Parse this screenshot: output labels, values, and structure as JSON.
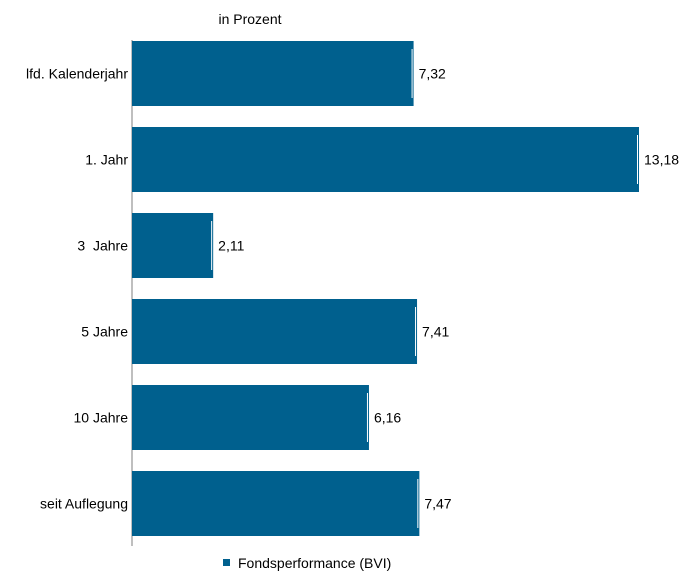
{
  "chart_data": {
    "type": "bar",
    "orientation": "horizontal",
    "unit_label": "in Prozent",
    "categories": [
      "lfd. Kalenderjahr",
      "1. Jahr",
      "3  Jahre",
      "5 Jahre",
      "10 Jahre",
      "seit Auflegung"
    ],
    "series": [
      {
        "name": "Fondsperformance (BVI)",
        "values": [
          7.32,
          13.18,
          2.11,
          7.41,
          6.16,
          7.47
        ],
        "value_labels": [
          "7,32",
          "13,18",
          "2,11",
          "7,41",
          "6,16",
          "7,47"
        ],
        "color": "#00608e"
      }
    ],
    "xlim": [
      0,
      13.18
    ],
    "grid": false,
    "legend_position": "bottom"
  }
}
